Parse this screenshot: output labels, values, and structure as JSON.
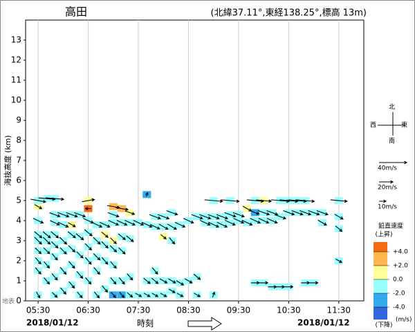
{
  "chart_data": {
    "type": "wind-profile",
    "title": "高田",
    "subtitle": "(北緯37.11°,東経138.25°,標高 13m)",
    "y_label": "海抜高度 (km)",
    "x_label": "時刻",
    "date_start": "2018/01/12",
    "date_end": "2018/01/12",
    "surface_label": "地表",
    "xlim": [
      5.25,
      12.0
    ],
    "xticks": [
      {
        "value": 5.5,
        "label": "05:30"
      },
      {
        "value": 6.5,
        "label": "06:30"
      },
      {
        "value": 7.5,
        "label": "07:30"
      },
      {
        "value": 8.5,
        "label": "08:30"
      },
      {
        "value": 9.5,
        "label": "09:30"
      },
      {
        "value": 10.5,
        "label": "10:30"
      },
      {
        "value": 11.5,
        "label": "11:30"
      }
    ],
    "ylim": [
      0,
      14
    ],
    "yticks": [
      0,
      1,
      2,
      3,
      4,
      5,
      6,
      7,
      8,
      9,
      10,
      11,
      12,
      13
    ],
    "grid": true,
    "compass": {
      "north": "北",
      "east": "東",
      "south": "南",
      "west": "西"
    },
    "speed_legend": [
      {
        "label": "40m/s",
        "speed": 40
      },
      {
        "label": "20m/s",
        "speed": 20
      },
      {
        "label": "10m/s",
        "speed": 10
      }
    ],
    "w_legend": {
      "title": "鉛直速度",
      "up": "(上昇)",
      "down": "(下降)",
      "unit": "(m/s)",
      "ticks": [
        {
          "value": 4,
          "label": "+4.0"
        },
        {
          "value": 2,
          "label": "+2.0"
        },
        {
          "value": 0,
          "label": "0.0"
        },
        {
          "value": -2,
          "label": "-2.0"
        },
        {
          "value": -4,
          "label": "-4.0"
        }
      ],
      "colors": [
        "#f26a12",
        "#ffb84d",
        "#ffff99",
        "#99ffff",
        "#33aaee",
        "#3366dd"
      ]
    },
    "columns": [
      {
        "x": 5.5,
        "y": [
          0.3,
          1.5,
          2.0,
          2.5,
          3.0,
          3.3,
          4.0,
          4.7,
          5.0
        ],
        "dir": [
          330,
          320,
          320,
          315,
          315,
          310,
          295,
          300,
          280
        ],
        "speed": [
          10,
          12,
          12,
          12,
          14,
          14,
          16,
          12,
          22
        ],
        "w": [
          -0.5,
          -0.5,
          -0.5,
          -0.5,
          -0.5,
          -0.5,
          -0.5,
          1.0,
          -0.5
        ]
      },
      {
        "x": 5.67,
        "y": [
          1.0,
          1.8,
          2.5,
          3.0,
          3.3,
          5.1
        ],
        "dir": [
          320,
          320,
          315,
          315,
          310,
          275
        ],
        "speed": [
          12,
          12,
          12,
          14,
          14,
          24
        ],
        "w": [
          -0.5,
          -0.5,
          -0.5,
          -0.5,
          -0.5,
          -0.5
        ]
      },
      {
        "x": 5.83,
        "y": [
          0.3,
          1.2,
          2.2,
          2.8,
          3.3,
          3.9,
          4.3,
          5.1
        ],
        "dir": [
          315,
          320,
          320,
          315,
          310,
          295,
          290,
          275
        ],
        "speed": [
          10,
          12,
          12,
          13,
          14,
          15,
          16,
          26
        ],
        "w": [
          -0.5,
          -0.5,
          -0.5,
          -0.5,
          -0.5,
          -0.5,
          -0.5,
          -0.5
        ]
      },
      {
        "x": 6.0,
        "y": [
          0.5,
          1.5,
          2.5,
          3.0,
          3.8,
          4.3
        ],
        "dir": [
          320,
          320,
          315,
          315,
          295,
          290
        ],
        "speed": [
          12,
          13,
          13,
          14,
          16,
          17
        ],
        "w": [
          -0.5,
          -0.5,
          -0.5,
          -0.5,
          -0.5,
          -0.5
        ]
      },
      {
        "x": 6.17,
        "y": [
          0.8,
          1.8,
          2.6,
          3.3,
          3.8,
          4.3
        ],
        "dir": [
          320,
          320,
          315,
          310,
          300,
          290
        ],
        "speed": [
          12,
          13,
          13,
          14,
          12,
          17
        ],
        "w": [
          -0.5,
          -0.5,
          -0.5,
          -0.5,
          1.0,
          -0.5
        ]
      },
      {
        "x": 6.33,
        "y": [
          0.3,
          1.3,
          2.3,
          3.2,
          4.3
        ],
        "dir": [
          320,
          320,
          315,
          310,
          290
        ],
        "speed": [
          11,
          13,
          13,
          14,
          17
        ],
        "w": [
          -0.5,
          -0.5,
          -0.5,
          -0.5,
          -0.5
        ]
      },
      {
        "x": 6.5,
        "y": [
          1.0,
          2.0,
          2.7,
          3.4,
          4.0,
          4.6,
          5.0
        ],
        "dir": [
          320,
          320,
          315,
          310,
          295,
          90,
          260
        ],
        "speed": [
          12,
          13,
          13,
          14,
          16,
          8,
          18
        ],
        "w": [
          -0.5,
          -0.5,
          -0.5,
          -0.5,
          -0.5,
          5.0,
          1.0
        ]
      },
      {
        "x": 6.67,
        "y": [
          0.3,
          1.5,
          2.2,
          3.0,
          3.8
        ],
        "dir": [
          320,
          320,
          315,
          315,
          295
        ],
        "speed": [
          11,
          13,
          13,
          14,
          16
        ],
        "w": [
          -0.5,
          -0.5,
          -0.5,
          -0.5,
          -0.5
        ]
      },
      {
        "x": 6.83,
        "y": [
          0.6,
          2.0,
          2.8,
          3.3,
          3.8
        ],
        "dir": [
          320,
          320,
          315,
          310,
          295
        ],
        "speed": [
          12,
          13,
          13,
          12,
          16
        ],
        "w": [
          -0.5,
          -0.5,
          -0.5,
          1.0,
          -0.5
        ]
      },
      {
        "x": 7.0,
        "y": [
          0.3,
          1.0,
          1.8,
          2.6,
          3.0,
          3.9,
          4.3,
          4.7
        ],
        "dir": [
          320,
          320,
          320,
          315,
          315,
          295,
          290,
          280
        ],
        "speed": [
          10,
          12,
          13,
          13,
          12,
          16,
          17,
          18
        ],
        "w": [
          -3.0,
          -0.5,
          -0.5,
          -0.5,
          1.0,
          -0.5,
          -0.5,
          3.0
        ]
      },
      {
        "x": 7.17,
        "y": [
          0.3,
          1.0,
          2.5,
          3.2,
          3.9,
          4.6
        ],
        "dir": [
          320,
          320,
          315,
          310,
          295,
          280
        ],
        "speed": [
          10,
          12,
          13,
          13,
          16,
          18
        ],
        "w": [
          -3.0,
          -0.5,
          -0.5,
          -0.5,
          -0.5,
          3.0
        ]
      },
      {
        "x": 7.33,
        "y": [
          0.3,
          1.2,
          3.1,
          3.9,
          4.4
        ],
        "dir": [
          310,
          320,
          310,
          295,
          290
        ],
        "speed": [
          10,
          12,
          13,
          16,
          14
        ],
        "w": [
          -0.5,
          -0.5,
          -0.5,
          -0.5,
          1.0
        ]
      },
      {
        "x": 7.5,
        "y": [
          0.3,
          3.9
        ],
        "dir": [
          300,
          295
        ],
        "speed": [
          10,
          16
        ],
        "w": [
          -0.5,
          -0.5
        ]
      },
      {
        "x": 7.67,
        "y": [
          0.3,
          1.0,
          3.8,
          5.3
        ],
        "dir": [
          300,
          310,
          295,
          200
        ],
        "speed": [
          10,
          12,
          16,
          6
        ],
        "w": [
          -0.5,
          -0.5,
          -0.5,
          -3.0
        ]
      },
      {
        "x": 7.83,
        "y": [
          0.3,
          1.0,
          1.5,
          3.7,
          4.2
        ],
        "dir": [
          300,
          310,
          320,
          295,
          290
        ],
        "speed": [
          10,
          12,
          12,
          15,
          17
        ],
        "w": [
          -0.5,
          -0.5,
          -0.5,
          -0.5,
          -0.5
        ]
      },
      {
        "x": 8.0,
        "y": [
          0.3,
          1.0,
          3.2,
          3.7,
          4.2
        ],
        "dir": [
          300,
          300,
          310,
          300,
          290
        ],
        "speed": [
          10,
          12,
          10,
          15,
          17
        ],
        "w": [
          -0.5,
          -0.5,
          1.0,
          -0.5,
          -0.5
        ]
      },
      {
        "x": 8.17,
        "y": [
          0.5,
          1.0,
          3.0,
          3.7,
          4.4
        ],
        "dir": [
          300,
          300,
          320,
          300,
          290
        ],
        "speed": [
          10,
          12,
          12,
          15,
          17
        ],
        "w": [
          -0.5,
          -0.5,
          -0.5,
          -0.5,
          -0.5
        ]
      },
      {
        "x": 8.33,
        "y": [
          0.3,
          0.9,
          3.8
        ],
        "dir": [
          300,
          300,
          295
        ],
        "speed": [
          10,
          12,
          16
        ],
        "w": [
          -0.5,
          -0.5,
          -0.5
        ]
      },
      {
        "x": 8.5,
        "y": [
          1.0,
          4.0
        ],
        "dir": [
          300,
          295
        ],
        "speed": [
          12,
          16
        ],
        "w": [
          -0.5,
          -0.5
        ]
      },
      {
        "x": 8.67,
        "y": [
          0.3,
          1.2,
          4.2
        ],
        "dir": [
          300,
          310,
          290
        ],
        "speed": [
          10,
          12,
          17
        ],
        "w": [
          -0.5,
          -0.5,
          -0.5
        ]
      },
      {
        "x": 8.83,
        "y": [
          3.9,
          4.2
        ],
        "dir": [
          295,
          290
        ],
        "speed": [
          16,
          17
        ],
        "w": [
          -0.5,
          -0.5
        ]
      },
      {
        "x": 9.0,
        "y": [
          0.3,
          3.8,
          4.2,
          5.0
        ],
        "dir": [
          200,
          295,
          290,
          275
        ],
        "speed": [
          8,
          16,
          17,
          26
        ],
        "w": [
          -0.5,
          -0.5,
          -0.5,
          -0.5
        ]
      },
      {
        "x": 9.17,
        "y": [
          3.8,
          4.2
        ],
        "dir": [
          295,
          290
        ],
        "speed": [
          16,
          17
        ],
        "w": [
          -0.5,
          -0.5
        ]
      },
      {
        "x": 9.33,
        "y": [
          3.9,
          4.3,
          5.0
        ],
        "dir": [
          295,
          290,
          275
        ],
        "speed": [
          16,
          17,
          26
        ],
        "w": [
          -0.5,
          -0.5,
          -0.5
        ]
      },
      {
        "x": 9.5,
        "y": [
          4.0,
          4.3
        ],
        "dir": [
          295,
          290
        ],
        "speed": [
          16,
          17
        ],
        "w": [
          -0.5,
          -0.5
        ]
      },
      {
        "x": 9.67,
        "y": [
          3.9,
          4.6
        ],
        "dir": [
          295,
          300
        ],
        "speed": [
          16,
          14
        ],
        "w": [
          -0.5,
          1.0
        ]
      },
      {
        "x": 9.83,
        "y": [
          0.9,
          4.0,
          4.4,
          5.0
        ],
        "dir": [
          270,
          295,
          290,
          275
        ],
        "speed": [
          12,
          16,
          12,
          24
        ],
        "w": [
          -0.5,
          -0.5,
          -3.0,
          -0.5
        ]
      },
      {
        "x": 10.0,
        "y": [
          0.9,
          4.0,
          4.4,
          5.0
        ],
        "dir": [
          270,
          295,
          290,
          275
        ],
        "speed": [
          12,
          16,
          17,
          22
        ],
        "w": [
          -0.5,
          -0.5,
          -0.5,
          1.0
        ]
      },
      {
        "x": 10.17,
        "y": [
          0.7,
          4.0,
          4.4
        ],
        "dir": [
          270,
          295,
          290
        ],
        "speed": [
          12,
          16,
          17
        ],
        "w": [
          -0.5,
          -0.5,
          -0.5
        ]
      },
      {
        "x": 10.33,
        "y": [
          0.7,
          4.2,
          5.0
        ],
        "dir": [
          270,
          290,
          275
        ],
        "speed": [
          12,
          17,
          26
        ],
        "w": [
          -0.5,
          -0.5,
          -0.5
        ]
      },
      {
        "x": 10.5,
        "y": [
          0.7,
          4.4,
          5.0
        ],
        "dir": [
          270,
          290,
          275
        ],
        "speed": [
          12,
          17,
          26
        ],
        "w": [
          -0.5,
          -0.5,
          -0.5
        ]
      },
      {
        "x": 10.67,
        "y": [
          4.4,
          5.0
        ],
        "dir": [
          290,
          275
        ],
        "speed": [
          17,
          26
        ],
        "w": [
          -0.5,
          -0.5
        ]
      },
      {
        "x": 10.83,
        "y": [
          0.9,
          4.4,
          5.0
        ],
        "dir": [
          270,
          290,
          275
        ],
        "speed": [
          12,
          17,
          26
        ],
        "w": [
          -0.5,
          -0.5,
          -0.5
        ]
      },
      {
        "x": 11.0,
        "y": [
          0.9,
          4.4
        ],
        "dir": [
          270,
          290
        ],
        "speed": [
          12,
          17
        ],
        "w": [
          -0.5,
          -0.5
        ]
      },
      {
        "x": 11.17,
        "y": [
          3.9,
          4.4
        ],
        "dir": [
          300,
          290
        ],
        "speed": [
          14,
          17
        ],
        "w": [
          -0.5,
          -0.5
        ]
      },
      {
        "x": 11.5,
        "y": [
          2.0,
          3.6,
          4.2,
          5.0
        ],
        "dir": [
          300,
          310,
          300,
          275
        ],
        "speed": [
          10,
          12,
          14,
          24
        ],
        "w": [
          -0.5,
          -0.5,
          -0.5,
          -0.5
        ]
      }
    ]
  }
}
